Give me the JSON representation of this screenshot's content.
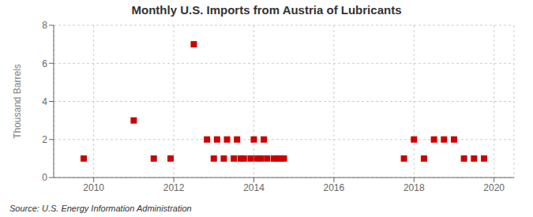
{
  "chart_data": {
    "type": "scatter",
    "title": "Monthly U.S. Imports from Austria of Lubricants",
    "ylabel": "Thousand Barrels",
    "annotations": [
      "Source: U.S. Energy Information Administration"
    ],
    "x": [
      2009.75,
      2011.0,
      2011.5,
      2011.92,
      2012.5,
      2012.83,
      2013.0,
      2013.08,
      2013.25,
      2013.33,
      2013.5,
      2013.58,
      2013.67,
      2013.75,
      2013.92,
      2014.0,
      2014.08,
      2014.17,
      2014.25,
      2014.33,
      2014.5,
      2014.58,
      2014.67,
      2014.75,
      2017.75,
      2018.0,
      2018.25,
      2018.5,
      2018.75,
      2019.0,
      2019.25,
      2019.5,
      2019.75
    ],
    "values": [
      1,
      3,
      1,
      1,
      7,
      2,
      1,
      2,
      1,
      2,
      1,
      2,
      1,
      1,
      1,
      2,
      1,
      1,
      2,
      1,
      1,
      1,
      1,
      1,
      1,
      2,
      1,
      2,
      2,
      2,
      1,
      1,
      1
    ],
    "color": "#cc0000",
    "marker": "square",
    "xlim": [
      2009.0,
      2020.5
    ],
    "ylim": [
      0,
      8
    ],
    "xticks": [
      2010,
      2012,
      2014,
      2016,
      2018,
      2020
    ],
    "yticks": [
      0,
      2,
      4,
      6,
      8
    ],
    "grid": true
  }
}
